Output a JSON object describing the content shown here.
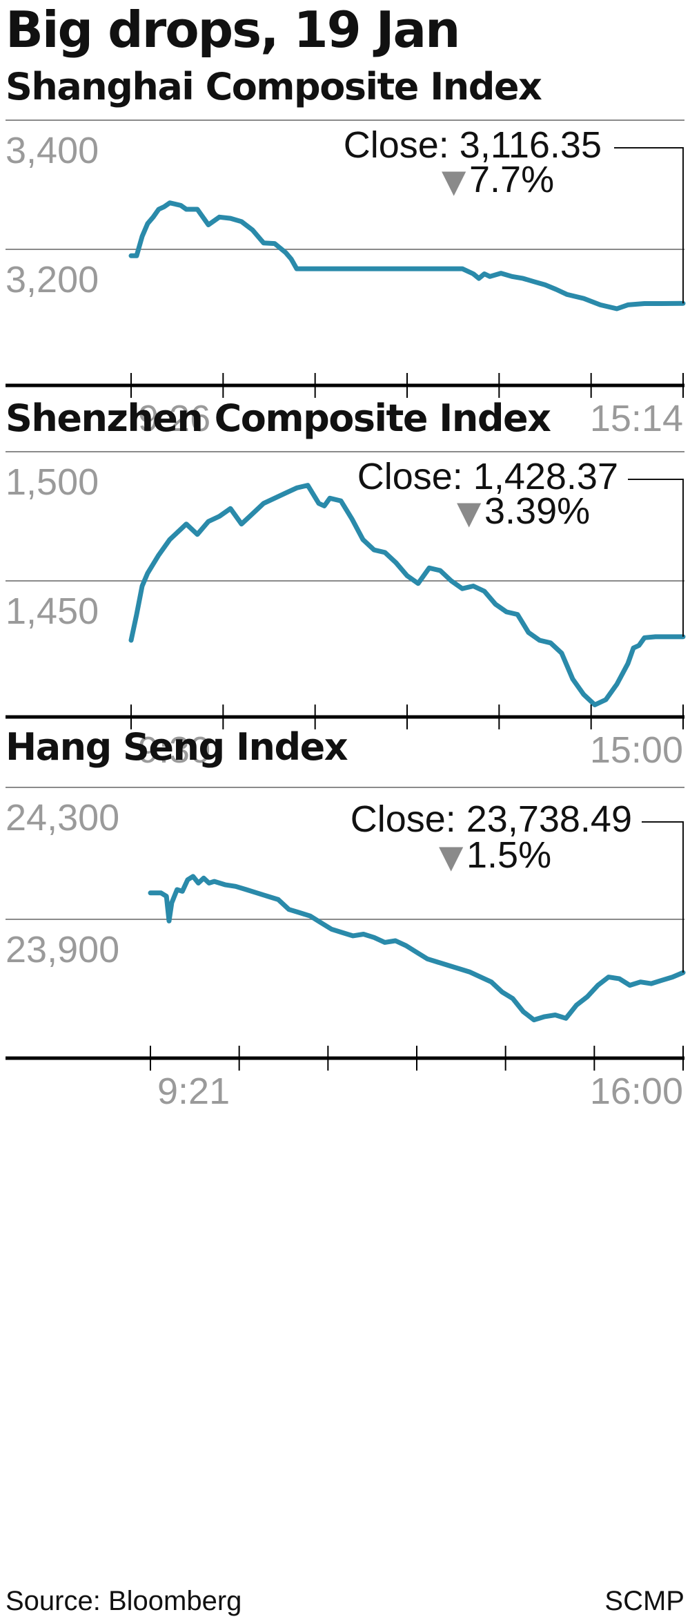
{
  "title": "Big drops, 19 Jan",
  "colors": {
    "line": "#2a8aaa",
    "grid": "#8a8a8a",
    "axis": "#000000",
    "tick_label": "#9a9a9a",
    "down_arrow": "#8a8a8a"
  },
  "icons": {
    "down_arrow": "down-triangle-icon"
  },
  "chart_data": [
    {
      "type": "line",
      "title": "Shanghai Composite Index",
      "close_label": "Close: 3,116.35",
      "change_label": "7.7%",
      "x_start_label": "9:26",
      "x_end_label": "15:14",
      "y_tick_labels": [
        "3,400",
        "3,200"
      ],
      "y_ticks": [
        3400,
        3200
      ],
      "ylim": [
        3000,
        3400
      ],
      "grid": true,
      "x": [
        0,
        0.01,
        0.02,
        0.03,
        0.04,
        0.05,
        0.06,
        0.07,
        0.08,
        0.09,
        0.1,
        0.11,
        0.12,
        0.14,
        0.16,
        0.18,
        0.2,
        0.22,
        0.24,
        0.26,
        0.28,
        0.29,
        0.3,
        0.32,
        0.34,
        0.36,
        0.38,
        0.4,
        0.45,
        0.5,
        0.55,
        0.6,
        0.62,
        0.63,
        0.64,
        0.65,
        0.67,
        0.69,
        0.71,
        0.73,
        0.75,
        0.77,
        0.79,
        0.82,
        0.85,
        0.87,
        0.88,
        0.9,
        0.93,
        0.96,
        1.0
      ],
      "values": [
        3190,
        3190,
        3220,
        3240,
        3250,
        3262,
        3266,
        3272,
        3270,
        3268,
        3262,
        3262,
        3262,
        3238,
        3250,
        3248,
        3243,
        3230,
        3210,
        3209,
        3195,
        3185,
        3170,
        3170,
        3170,
        3170,
        3170,
        3170,
        3170,
        3170,
        3170,
        3170,
        3162,
        3155,
        3162,
        3158,
        3163,
        3158,
        3155,
        3150,
        3145,
        3138,
        3130,
        3124,
        3114,
        3110,
        3108,
        3114,
        3116,
        3116,
        3116.35
      ]
    },
    {
      "type": "line",
      "title": "Shenzhen Composite Index",
      "close_label": "Close: 1,428.37",
      "change_label": "3.39%",
      "x_start_label": "9:30",
      "x_end_label": "15:00",
      "y_tick_labels": [
        "1,500",
        "1,450"
      ],
      "y_ticks": [
        1500,
        1450
      ],
      "ylim": [
        1400,
        1500
      ],
      "grid": true,
      "x": [
        0,
        0.01,
        0.02,
        0.03,
        0.05,
        0.07,
        0.09,
        0.1,
        0.12,
        0.14,
        0.16,
        0.18,
        0.2,
        0.22,
        0.24,
        0.26,
        0.28,
        0.3,
        0.32,
        0.34,
        0.35,
        0.36,
        0.38,
        0.4,
        0.42,
        0.44,
        0.46,
        0.48,
        0.5,
        0.52,
        0.54,
        0.56,
        0.58,
        0.6,
        0.62,
        0.64,
        0.66,
        0.68,
        0.7,
        0.72,
        0.74,
        0.76,
        0.78,
        0.8,
        0.82,
        0.84,
        0.86,
        0.88,
        0.9,
        0.91,
        0.92,
        0.93,
        0.95,
        0.97,
        1.0
      ],
      "values": [
        1427,
        1437,
        1448,
        1453,
        1460,
        1466,
        1470,
        1472,
        1468,
        1473,
        1475,
        1478,
        1472,
        1476,
        1480,
        1482,
        1484,
        1486,
        1487,
        1480,
        1479,
        1482,
        1481,
        1474,
        1466,
        1462,
        1461,
        1457,
        1452,
        1449,
        1455,
        1454,
        1450,
        1447,
        1448,
        1446,
        1441,
        1438,
        1437,
        1430,
        1427,
        1426,
        1422,
        1412,
        1406,
        1402,
        1404,
        1410,
        1418,
        1424,
        1425,
        1428,
        1428.37,
        1428.37,
        1428.37
      ]
    },
    {
      "type": "line",
      "title": "Hang Seng Index",
      "close_label": "Close: 23,738.49",
      "change_label": "1.5%",
      "x_start_label": "9:21",
      "x_end_label": "16:00",
      "y_tick_labels": [
        "24,300",
        "23,900"
      ],
      "y_ticks": [
        24300,
        23900
      ],
      "ylim": [
        23500,
        24300
      ],
      "grid": true,
      "x": [
        0,
        0.02,
        0.03,
        0.035,
        0.04,
        0.05,
        0.06,
        0.07,
        0.08,
        0.09,
        0.1,
        0.11,
        0.12,
        0.14,
        0.16,
        0.18,
        0.2,
        0.22,
        0.24,
        0.26,
        0.28,
        0.3,
        0.32,
        0.34,
        0.36,
        0.38,
        0.4,
        0.42,
        0.44,
        0.46,
        0.48,
        0.5,
        0.52,
        0.54,
        0.56,
        0.58,
        0.6,
        0.62,
        0.64,
        0.66,
        0.68,
        0.7,
        0.72,
        0.74,
        0.76,
        0.78,
        0.8,
        0.82,
        0.84,
        0.86,
        0.88,
        0.9,
        0.92,
        0.94,
        0.96,
        0.98,
        1.0
      ],
      "values": [
        23980,
        23980,
        23970,
        23895,
        23950,
        23990,
        23985,
        24020,
        24030,
        24010,
        24025,
        24010,
        24015,
        24005,
        24000,
        23990,
        23980,
        23970,
        23960,
        23930,
        23920,
        23910,
        23890,
        23870,
        23860,
        23850,
        23855,
        23845,
        23830,
        23835,
        23820,
        23800,
        23780,
        23770,
        23760,
        23750,
        23740,
        23725,
        23710,
        23680,
        23660,
        23620,
        23595,
        23605,
        23610,
        23600,
        23640,
        23665,
        23700,
        23725,
        23720,
        23700,
        23710,
        23705,
        23715,
        23725,
        23738.49
      ]
    }
  ],
  "footer": {
    "source": "Source: Bloomberg",
    "credit": "SCMP"
  }
}
